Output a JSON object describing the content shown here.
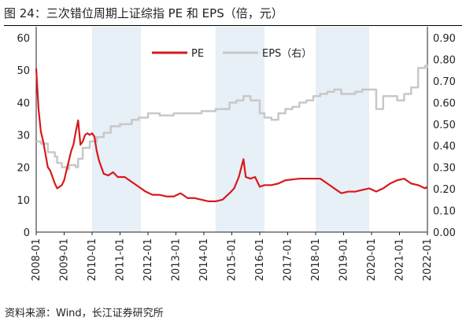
{
  "title": "图 24：三次错位周期上证综指 PE 和 EPS（倍，元）",
  "source": "资料来源：Wind，长江证券研究所",
  "colors": {
    "pe": "#d7191c",
    "eps": "#c8c8c8",
    "shade": "#e7eff7",
    "axis": "#222222",
    "rule": "#000000"
  },
  "chart_data": {
    "type": "line",
    "title": "",
    "left_axis": {
      "ylim": [
        0,
        60
      ],
      "ticks": [
        "0",
        "10",
        "20",
        "30",
        "40",
        "50",
        "60"
      ]
    },
    "right_axis": {
      "ylim": [
        0,
        0.9
      ],
      "ticks": [
        "0.00",
        "0.10",
        "0.20",
        "0.30",
        "0.40",
        "0.50",
        "0.60",
        "0.70",
        "0.80",
        "0.90"
      ]
    },
    "x_range": [
      "2008-01",
      "2022-01"
    ],
    "x_ticks": [
      "2008-01",
      "2009-01",
      "2010-01",
      "2011-01",
      "2012-01",
      "2013-01",
      "2014-01",
      "2015-01",
      "2016-01",
      "2017-01",
      "2018-01",
      "2019-01",
      "2020-01",
      "2021-01",
      "2022-01"
    ],
    "legend_position": "top-center",
    "grid": false,
    "shaded_periods": [
      {
        "start": "2010-01",
        "end": "2011-10"
      },
      {
        "start": "2014-06",
        "end": "2016-03"
      },
      {
        "start": "2018-01",
        "end": "2019-12"
      }
    ],
    "series": [
      {
        "name": "PE",
        "axis": "left",
        "x": [
          "2008-01",
          "2008-02",
          "2008-03",
          "2008-04",
          "2008-05",
          "2008-06",
          "2008-07",
          "2008-08",
          "2008-09",
          "2008-10",
          "2008-11",
          "2008-12",
          "2009-01",
          "2009-02",
          "2009-03",
          "2009-04",
          "2009-05",
          "2009-06",
          "2009-07",
          "2009-08",
          "2009-09",
          "2009-10",
          "2009-11",
          "2009-12",
          "2010-01",
          "2010-02",
          "2010-03",
          "2010-04",
          "2010-06",
          "2010-08",
          "2010-10",
          "2010-12",
          "2011-03",
          "2011-06",
          "2011-09",
          "2011-12",
          "2012-03",
          "2012-06",
          "2012-09",
          "2012-12",
          "2013-03",
          "2013-06",
          "2013-09",
          "2013-12",
          "2014-03",
          "2014-06",
          "2014-09",
          "2014-12",
          "2015-02",
          "2015-04",
          "2015-06",
          "2015-07",
          "2015-09",
          "2015-11",
          "2016-01",
          "2016-03",
          "2016-06",
          "2016-09",
          "2016-12",
          "2017-06",
          "2017-12",
          "2018-03",
          "2018-06",
          "2018-09",
          "2018-12",
          "2019-03",
          "2019-06",
          "2019-09",
          "2019-12",
          "2020-03",
          "2020-06",
          "2020-09",
          "2020-12",
          "2021-03",
          "2021-06",
          "2021-09",
          "2021-12",
          "2022-01"
        ],
        "values": [
          50.5,
          38.0,
          31.0,
          28.0,
          24.0,
          20.0,
          19.0,
          17.0,
          15.0,
          13.5,
          14.0,
          14.5,
          16.0,
          19.0,
          22.0,
          25.0,
          27.0,
          31.0,
          34.5,
          27.0,
          28.0,
          30.0,
          30.5,
          30.0,
          30.5,
          29.5,
          25.0,
          22.0,
          18.0,
          17.5,
          18.5,
          17.0,
          17.0,
          15.5,
          14.0,
          12.5,
          11.5,
          11.5,
          11.0,
          11.0,
          12.0,
          10.5,
          10.5,
          10.0,
          9.5,
          9.5,
          10.0,
          12.0,
          13.5,
          17.0,
          22.5,
          17.0,
          16.5,
          17.0,
          14.0,
          14.5,
          14.5,
          15.0,
          16.0,
          16.5,
          16.5,
          16.5,
          15.0,
          13.5,
          12.0,
          12.5,
          12.5,
          13.0,
          13.5,
          12.5,
          13.5,
          15.0,
          16.0,
          16.5,
          15.0,
          14.5,
          13.5,
          14.0
        ]
      },
      {
        "name": "EPS（右）",
        "axis": "right",
        "x": [
          "2008-01",
          "2008-03",
          "2008-06",
          "2008-09",
          "2008-10",
          "2008-12",
          "2009-02",
          "2009-03",
          "2009-06",
          "2009-07",
          "2009-09",
          "2009-12",
          "2010-01",
          "2010-03",
          "2010-06",
          "2010-09",
          "2011-01",
          "2011-06",
          "2011-09",
          "2012-01",
          "2012-06",
          "2012-12",
          "2013-06",
          "2013-12",
          "2014-06",
          "2014-12",
          "2015-03",
          "2015-06",
          "2015-09",
          "2016-01",
          "2016-03",
          "2016-06",
          "2016-09",
          "2016-12",
          "2017-03",
          "2017-06",
          "2017-09",
          "2017-12",
          "2018-03",
          "2018-06",
          "2018-09",
          "2018-12",
          "2019-03",
          "2019-06",
          "2019-09",
          "2019-12",
          "2020-03",
          "2020-06",
          "2020-09",
          "2020-12",
          "2021-03",
          "2021-06",
          "2021-09",
          "2021-12",
          "2022-01"
        ],
        "values": [
          0.42,
          0.41,
          0.37,
          0.35,
          0.32,
          0.3,
          0.29,
          0.31,
          0.3,
          0.34,
          0.39,
          0.42,
          0.42,
          0.44,
          0.46,
          0.49,
          0.5,
          0.52,
          0.53,
          0.55,
          0.54,
          0.55,
          0.55,
          0.56,
          0.57,
          0.6,
          0.61,
          0.63,
          0.61,
          0.55,
          0.53,
          0.52,
          0.55,
          0.57,
          0.58,
          0.6,
          0.61,
          0.63,
          0.64,
          0.65,
          0.66,
          0.64,
          0.64,
          0.65,
          0.66,
          0.66,
          0.57,
          0.63,
          0.63,
          0.61,
          0.64,
          0.67,
          0.76,
          0.77,
          0.76
        ]
      }
    ]
  }
}
